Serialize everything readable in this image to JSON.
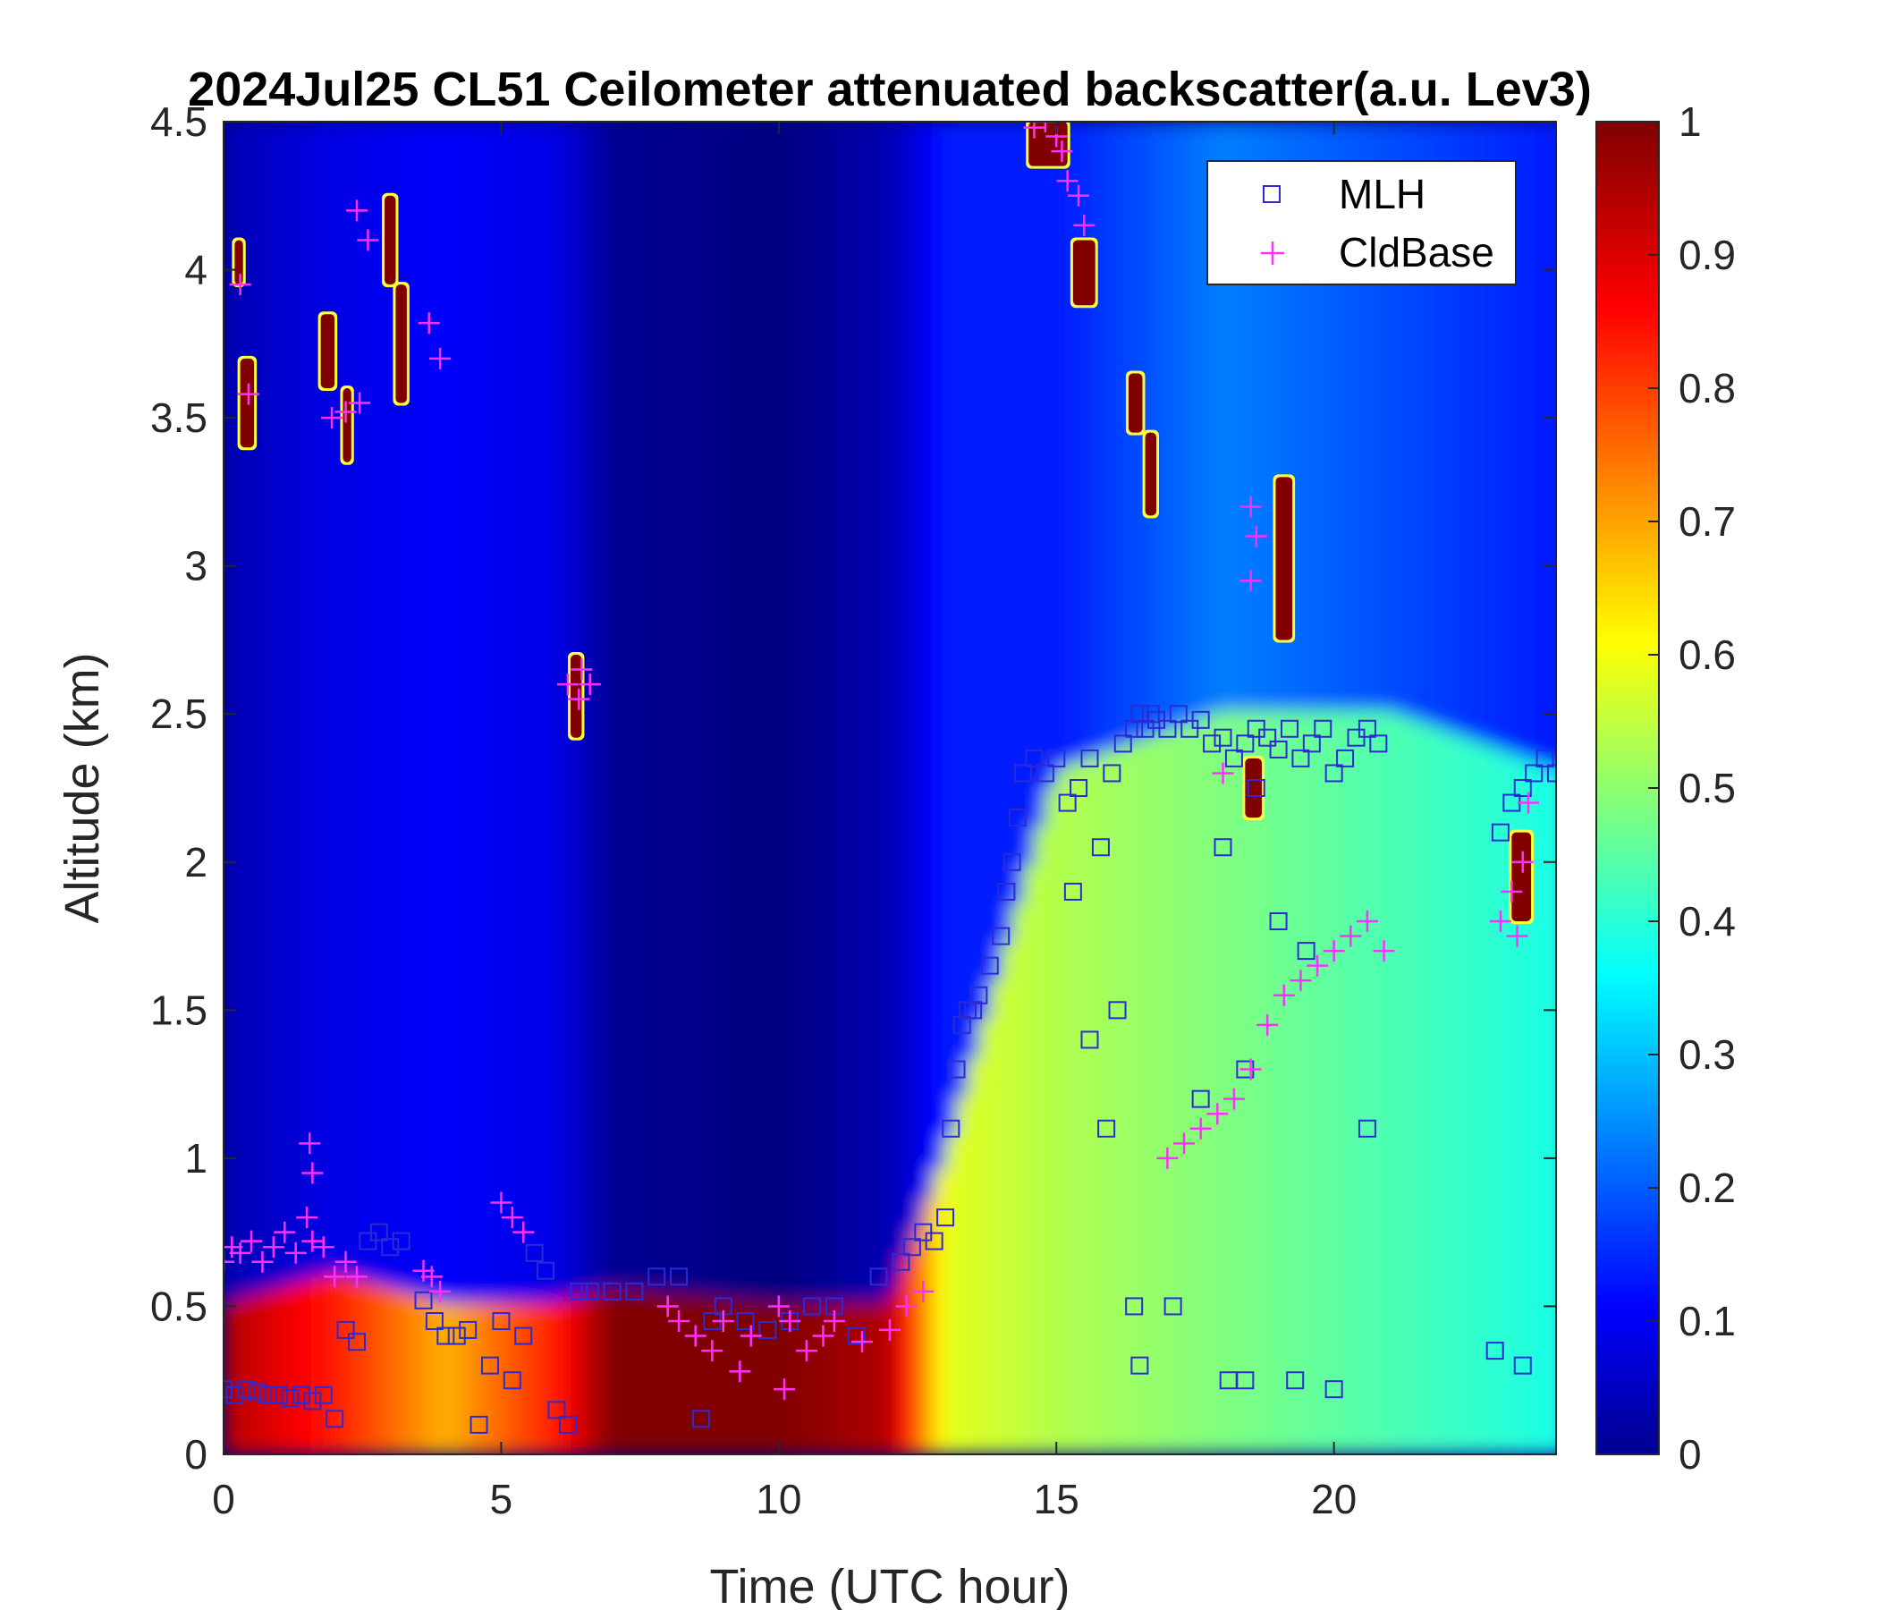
{
  "chart_data": {
    "type": "heatmap",
    "title": "2024Jul25 CL51 Ceilometer attenuated backscatter(a.u. Lev3)",
    "xlabel": "Time (UTC hour)",
    "ylabel": "Altitude (km)",
    "xlim": [
      0,
      24
    ],
    "ylim": [
      0,
      4.5
    ],
    "x_ticks": [
      "0",
      "5",
      "10",
      "15",
      "20"
    ],
    "x_tick_values": [
      0,
      5,
      10,
      15,
      20
    ],
    "y_ticks": [
      "0",
      "0.5",
      "1",
      "1.5",
      "2",
      "2.5",
      "3",
      "3.5",
      "4",
      "4.5"
    ],
    "y_tick_values": [
      0,
      0.5,
      1,
      1.5,
      2,
      2.5,
      3,
      3.5,
      4,
      4.5
    ],
    "colorbar": {
      "colormap": "jet",
      "range": [
        0,
        1
      ],
      "ticks": [
        "0",
        "0.1",
        "0.2",
        "0.3",
        "0.4",
        "0.5",
        "0.6",
        "0.7",
        "0.8",
        "0.9",
        "1"
      ],
      "tick_values": [
        0,
        0.1,
        0.2,
        0.3,
        0.4,
        0.5,
        0.6,
        0.7,
        0.8,
        0.9,
        1.0
      ]
    },
    "legend": {
      "placement": "top-right",
      "entries": [
        {
          "label": "MLH",
          "marker": "square",
          "color": "#2b2bd6"
        },
        {
          "label": "CldBase",
          "marker": "plus",
          "color": "#ff30ff"
        }
      ]
    },
    "background_field": [
      {
        "hour": 0,
        "surface_top_km": 0.5,
        "surface_value": 0.95,
        "aloft_value": 0.05
      },
      {
        "hour": 2,
        "surface_top_km": 0.6,
        "surface_value": 0.85,
        "aloft_value": 0.1
      },
      {
        "hour": 4,
        "surface_top_km": 0.5,
        "surface_value": 0.7,
        "aloft_value": 0.12
      },
      {
        "hour": 6,
        "surface_top_km": 0.5,
        "surface_value": 0.85,
        "aloft_value": 0.1
      },
      {
        "hour": 7,
        "surface_top_km": 0.55,
        "surface_value": 1.0,
        "aloft_value": 0.02
      },
      {
        "hour": 10,
        "surface_top_km": 0.5,
        "surface_value": 1.0,
        "aloft_value": 0.0
      },
      {
        "hour": 12,
        "surface_top_km": 0.5,
        "surface_value": 0.95,
        "aloft_value": 0.05
      },
      {
        "hour": 13,
        "surface_top_km": 1.0,
        "surface_value": 0.6,
        "aloft_value": 0.15
      },
      {
        "hour": 15,
        "surface_top_km": 2.3,
        "surface_value": 0.55,
        "aloft_value": 0.15
      },
      {
        "hour": 18,
        "surface_top_km": 2.5,
        "surface_value": 0.5,
        "aloft_value": 0.25
      },
      {
        "hour": 21,
        "surface_top_km": 2.5,
        "surface_value": 0.45,
        "aloft_value": 0.2
      },
      {
        "hour": 24,
        "surface_top_km": 2.3,
        "surface_value": 0.4,
        "aloft_value": 0.15
      }
    ],
    "cloud_patches": [
      {
        "x0": 0.3,
        "x1": 0.55,
        "y0": 3.4,
        "y1": 3.7
      },
      {
        "x0": 0.2,
        "x1": 0.35,
        "y0": 3.95,
        "y1": 4.1
      },
      {
        "x0": 1.75,
        "x1": 2.0,
        "y0": 3.6,
        "y1": 3.85
      },
      {
        "x0": 2.15,
        "x1": 2.3,
        "y0": 3.35,
        "y1": 3.6
      },
      {
        "x0": 2.9,
        "x1": 3.1,
        "y0": 3.95,
        "y1": 4.25
      },
      {
        "x0": 3.1,
        "x1": 3.3,
        "y0": 3.55,
        "y1": 3.95
      },
      {
        "x0": 6.25,
        "x1": 6.45,
        "y0": 2.42,
        "y1": 2.7
      },
      {
        "x0": 14.5,
        "x1": 15.2,
        "y0": 4.35,
        "y1": 4.5
      },
      {
        "x0": 15.3,
        "x1": 15.7,
        "y0": 3.88,
        "y1": 4.1
      },
      {
        "x0": 16.3,
        "x1": 16.55,
        "y0": 3.45,
        "y1": 3.65
      },
      {
        "x0": 16.6,
        "x1": 16.8,
        "y0": 3.17,
        "y1": 3.45
      },
      {
        "x0": 18.95,
        "x1": 19.25,
        "y0": 2.75,
        "y1": 3.3
      },
      {
        "x0": 18.4,
        "x1": 18.7,
        "y0": 2.15,
        "y1": 2.35
      },
      {
        "x0": 23.2,
        "x1": 23.55,
        "y0": 1.8,
        "y1": 2.1
      }
    ],
    "series": [
      {
        "name": "MLH",
        "marker": "square",
        "x": [
          0.0,
          0.2,
          0.4,
          0.6,
          0.8,
          1.0,
          1.2,
          1.4,
          1.6,
          1.8,
          2.0,
          2.2,
          2.4,
          2.6,
          2.8,
          3.0,
          3.2,
          3.6,
          3.8,
          4.0,
          4.2,
          4.4,
          4.6,
          4.8,
          5.0,
          5.2,
          5.4,
          5.6,
          5.8,
          6.0,
          6.2,
          6.4,
          6.6,
          7.0,
          7.4,
          7.8,
          8.2,
          8.6,
          8.8,
          9.0,
          9.4,
          9.8,
          10.2,
          10.6,
          11.0,
          11.4,
          11.8,
          12.2,
          12.4,
          12.6,
          12.8,
          13.0,
          13.1,
          13.2,
          13.3,
          13.4,
          13.5,
          13.6,
          13.8,
          14.0,
          14.1,
          14.2,
          14.3,
          14.4,
          14.6,
          14.8,
          15.0,
          15.2,
          15.4,
          15.6,
          15.8,
          16.0,
          16.2,
          16.4,
          16.5,
          16.6,
          16.7,
          16.8,
          17.0,
          17.2,
          17.4,
          17.6,
          17.8,
          18.0,
          18.2,
          18.4,
          18.6,
          18.8,
          19.0,
          19.2,
          19.4,
          19.6,
          19.8,
          20.0,
          20.2,
          20.4,
          20.6,
          20.8,
          23.0,
          23.2,
          23.4,
          23.6,
          23.8,
          24.0,
          16.5,
          16.4,
          18.1,
          18.4,
          19.3,
          20.0,
          19.0,
          19.5,
          18.6,
          18.0,
          22.9,
          23.4,
          15.6,
          16.1,
          17.6,
          18.4,
          20.6,
          15.3,
          15.9,
          17.1
        ],
        "y": [
          0.22,
          0.2,
          0.22,
          0.21,
          0.2,
          0.2,
          0.19,
          0.2,
          0.18,
          0.2,
          0.12,
          0.42,
          0.38,
          0.72,
          0.75,
          0.7,
          0.72,
          0.52,
          0.45,
          0.4,
          0.4,
          0.42,
          0.1,
          0.3,
          0.45,
          0.25,
          0.4,
          0.68,
          0.62,
          0.15,
          0.1,
          0.55,
          0.55,
          0.55,
          0.55,
          0.6,
          0.6,
          0.12,
          0.45,
          0.5,
          0.45,
          0.42,
          0.45,
          0.5,
          0.5,
          0.4,
          0.6,
          0.65,
          0.7,
          0.75,
          0.72,
          0.8,
          1.1,
          1.3,
          1.45,
          1.5,
          1.5,
          1.55,
          1.65,
          1.75,
          1.9,
          2.0,
          2.15,
          2.3,
          2.35,
          2.3,
          2.35,
          2.2,
          2.25,
          2.35,
          2.05,
          2.3,
          2.4,
          2.45,
          2.5,
          2.45,
          2.5,
          2.48,
          2.45,
          2.5,
          2.45,
          2.48,
          2.4,
          2.42,
          2.35,
          2.4,
          2.45,
          2.42,
          2.38,
          2.45,
          2.35,
          2.4,
          2.45,
          2.3,
          2.35,
          2.42,
          2.45,
          2.4,
          2.1,
          2.2,
          2.25,
          2.3,
          2.35,
          2.3,
          0.3,
          0.5,
          0.25,
          0.25,
          0.25,
          0.22,
          1.8,
          1.7,
          2.25,
          2.05,
          0.35,
          0.3,
          1.4,
          1.5,
          1.2,
          1.3,
          1.1,
          1.9,
          1.1,
          0.5
        ]
      },
      {
        "name": "CldBase",
        "marker": "plus",
        "x": [
          0.0,
          0.15,
          0.3,
          0.5,
          0.7,
          0.9,
          1.1,
          1.3,
          1.5,
          1.6,
          1.8,
          2.0,
          2.2,
          2.4,
          0.3,
          0.45,
          1.95,
          2.2,
          2.45,
          2.4,
          2.6,
          3.6,
          3.75,
          3.9,
          3.7,
          3.9,
          5.0,
          5.2,
          5.4,
          6.2,
          6.4,
          6.6,
          6.45,
          8.0,
          8.2,
          8.5,
          8.8,
          9.0,
          9.5,
          10.0,
          10.2,
          10.5,
          10.8,
          11.0,
          11.5,
          12.0,
          12.3,
          12.6,
          14.6,
          14.8,
          15.0,
          15.2,
          15.4,
          15.5,
          15.1,
          17.0,
          17.3,
          17.6,
          17.9,
          18.2,
          18.5,
          18.8,
          19.1,
          19.4,
          19.7,
          20.0,
          20.3,
          20.6,
          20.9,
          18.5,
          18.6,
          18.5,
          18.0,
          23.0,
          23.2,
          23.4,
          23.5,
          23.3,
          9.3,
          10.1,
          1.55,
          1.6
        ],
        "y": [
          0.65,
          0.7,
          0.68,
          0.72,
          0.65,
          0.7,
          0.75,
          0.68,
          0.8,
          0.72,
          0.7,
          0.6,
          0.65,
          0.6,
          3.95,
          3.58,
          3.5,
          3.52,
          3.55,
          4.2,
          4.1,
          0.62,
          0.6,
          0.55,
          3.82,
          3.7,
          0.85,
          0.8,
          0.75,
          2.6,
          2.55,
          2.6,
          2.65,
          0.5,
          0.45,
          0.4,
          0.35,
          0.45,
          0.4,
          0.5,
          0.45,
          0.35,
          0.4,
          0.45,
          0.38,
          0.42,
          0.5,
          0.55,
          4.48,
          4.5,
          4.45,
          4.3,
          4.25,
          4.15,
          4.4,
          1.0,
          1.05,
          1.1,
          1.15,
          1.2,
          1.3,
          1.45,
          1.55,
          1.6,
          1.65,
          1.7,
          1.75,
          1.8,
          1.7,
          3.2,
          3.1,
          2.95,
          2.3,
          1.8,
          1.9,
          2.0,
          2.2,
          1.75,
          0.28,
          0.22,
          1.05,
          0.95
        ]
      }
    ]
  }
}
